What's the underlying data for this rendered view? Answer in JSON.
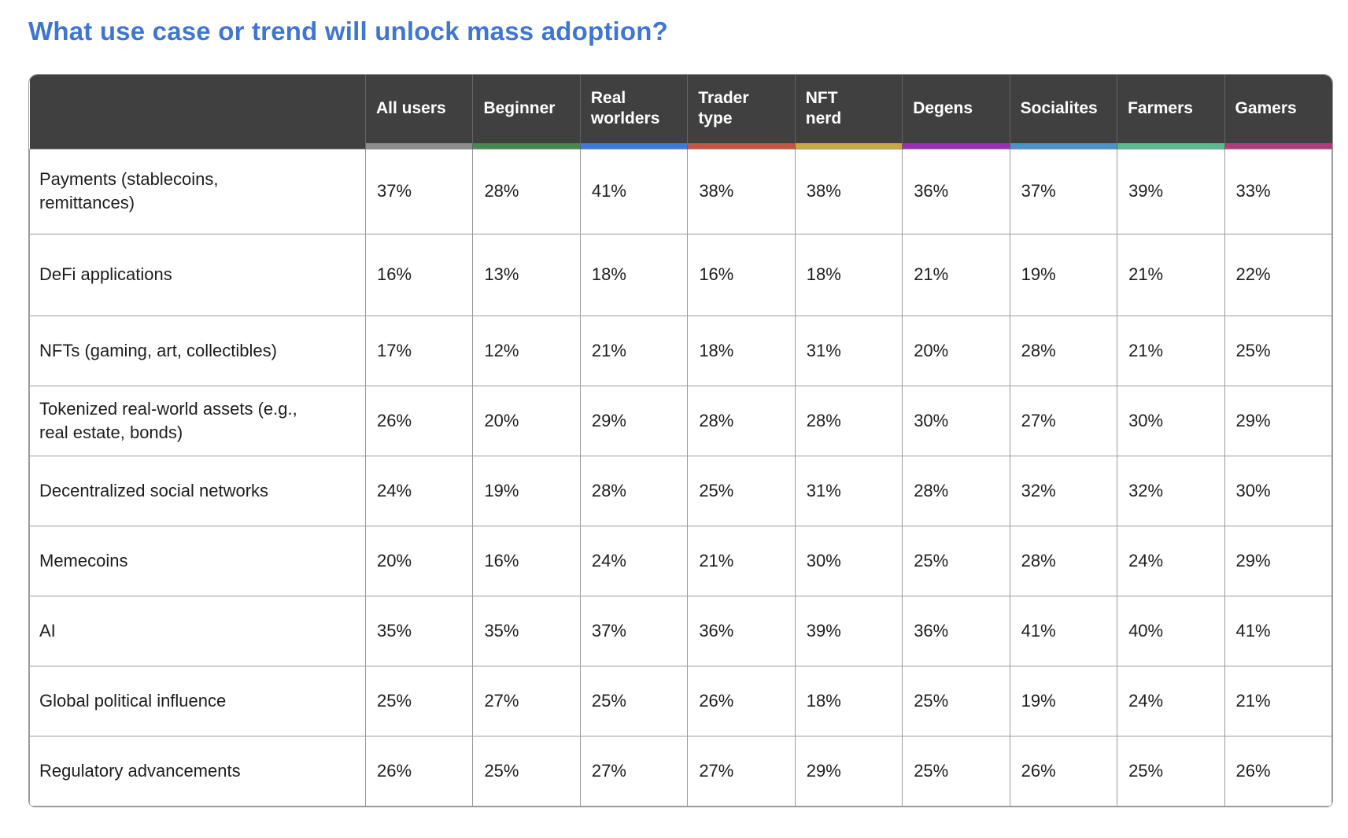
{
  "title": {
    "text": "What use case or trend will unlock mass adoption?",
    "color": "#3F76D0"
  },
  "chart_data": {
    "type": "table",
    "title": "What use case or trend will unlock mass adoption?",
    "columns": [
      {
        "label": "All users",
        "accent": "#8D8D8D"
      },
      {
        "label": "Beginner",
        "accent": "#44894F"
      },
      {
        "label": "Real\nworlders",
        "accent": "#3C7BD9"
      },
      {
        "label": "Trader\ntype",
        "accent": "#C65441"
      },
      {
        "label": "NFT\nnerd",
        "accent": "#CCA63F"
      },
      {
        "label": "Degens",
        "accent": "#9C2DB4"
      },
      {
        "label": "Socialites",
        "accent": "#4A92C9"
      },
      {
        "label": "Farmers",
        "accent": "#55BD8D"
      },
      {
        "label": "Gamers",
        "accent": "#B23C7B"
      }
    ],
    "rows": [
      {
        "label": "Payments (stablecoins,\nremittances)",
        "values": [
          "37%",
          "28%",
          "41%",
          "38%",
          "38%",
          "36%",
          "37%",
          "39%",
          "33%"
        ]
      },
      {
        "label": "DeFi applications",
        "values": [
          "16%",
          "13%",
          "18%",
          "16%",
          "18%",
          "21%",
          "19%",
          "21%",
          "22%"
        ]
      },
      {
        "label": "NFTs (gaming, art, collectibles)",
        "values": [
          "17%",
          "12%",
          "21%",
          "18%",
          "31%",
          "20%",
          "28%",
          "21%",
          "25%"
        ]
      },
      {
        "label": "Tokenized real-world assets (e.g.,\nreal estate, bonds)",
        "values": [
          "26%",
          "20%",
          "29%",
          "28%",
          "28%",
          "30%",
          "27%",
          "30%",
          "29%"
        ]
      },
      {
        "label": "Decentralized social networks",
        "values": [
          "24%",
          "19%",
          "28%",
          "25%",
          "31%",
          "28%",
          "32%",
          "32%",
          "30%"
        ]
      },
      {
        "label": "Memecoins",
        "values": [
          "20%",
          "16%",
          "24%",
          "21%",
          "30%",
          "25%",
          "28%",
          "24%",
          "29%"
        ]
      },
      {
        "label": "AI",
        "values": [
          "35%",
          "35%",
          "37%",
          "36%",
          "39%",
          "36%",
          "41%",
          "40%",
          "41%"
        ]
      },
      {
        "label": "Global political influence",
        "values": [
          "25%",
          "27%",
          "25%",
          "26%",
          "18%",
          "25%",
          "19%",
          "24%",
          "21%"
        ]
      },
      {
        "label": "Regulatory advancements",
        "values": [
          "26%",
          "25%",
          "27%",
          "27%",
          "29%",
          "25%",
          "26%",
          "25%",
          "26%"
        ]
      }
    ]
  }
}
